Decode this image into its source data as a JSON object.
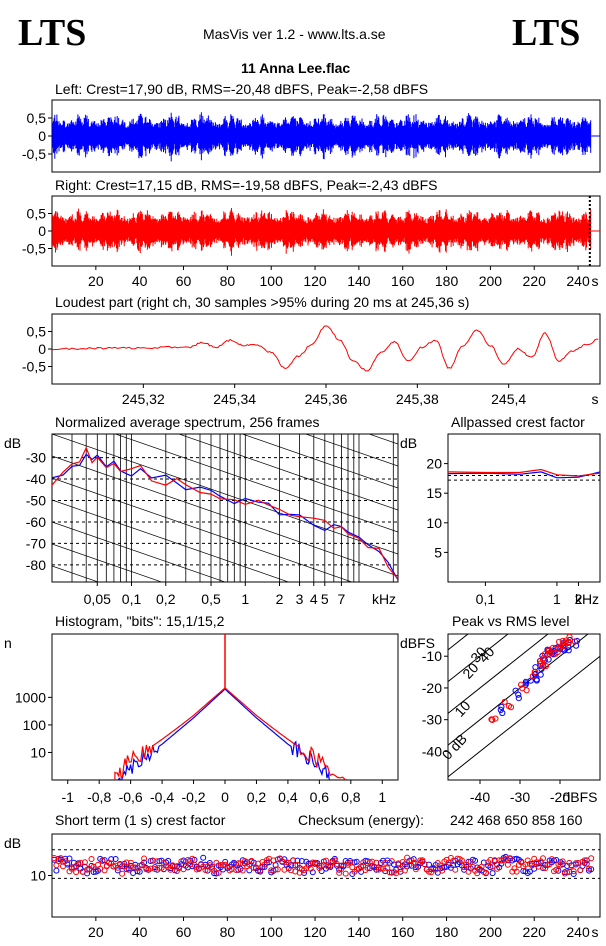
{
  "header": {
    "logo_left": "LTS",
    "logo_right": "LTS",
    "app_title": "MasVis ver 1.2 - www.lts.a.se",
    "file_name": "11 Anna Lee.flac"
  },
  "colors": {
    "left": "#0000ff",
    "right": "#ff0000",
    "frame": "#000000",
    "grid": "#000000"
  },
  "chart_data": [
    {
      "id": "left",
      "type": "line",
      "title": "Left: Crest=17,90 dB, RMS=-20,48 dBFS, Peak=-2,58 dBFS",
      "y_ticks": [
        "0,5",
        "0",
        "-0,5"
      ],
      "y_tick_values": [
        0.5,
        0,
        -0.5
      ],
      "ylim": [
        -1,
        1
      ],
      "xlim": [
        0,
        250
      ],
      "duration_s": 246,
      "envelope_peak": 0.75,
      "envelope_typical": 0.55
    },
    {
      "id": "right",
      "type": "line",
      "title": "Right: Crest=17,15 dB, RMS=-19,58 dBFS, Peak=-2,43 dBFS",
      "y_ticks": [
        "0,5",
        "0",
        "-0,5"
      ],
      "y_tick_values": [
        0.5,
        0,
        -0.5
      ],
      "ylim": [
        -1,
        1
      ],
      "xlim": [
        0,
        250
      ],
      "x_ticks": [
        "20",
        "40",
        "60",
        "80",
        "100",
        "120",
        "140",
        "160",
        "180",
        "200",
        "220",
        "240"
      ],
      "x_tick_values": [
        20,
        40,
        60,
        80,
        100,
        120,
        140,
        160,
        180,
        200,
        220,
        240
      ],
      "xunit": "s",
      "marker_x": 245.36
    },
    {
      "id": "loudest",
      "type": "line",
      "title": "Loudest part (right ch, 30 samples >95% during 20 ms at 245,36 s)",
      "y_ticks": [
        "0,5",
        "0",
        "-0,5"
      ],
      "y_tick_values": [
        0.5,
        0,
        -0.5
      ],
      "ylim": [
        -1,
        1
      ],
      "xlim": [
        245.3,
        245.42
      ],
      "x_ticks": [
        "245,32",
        "245,34",
        "245,36",
        "245,38",
        "245,4"
      ],
      "x_tick_values": [
        245.32,
        245.34,
        245.36,
        245.38,
        245.4
      ],
      "xunit": "s",
      "series": [
        {
          "x": [
            245.3,
            245.305,
            245.31,
            245.315,
            245.32,
            245.325,
            245.33,
            245.333,
            245.336,
            245.339,
            245.342,
            245.345,
            245.348,
            245.351,
            245.354,
            245.357,
            245.36,
            245.363,
            245.366,
            245.369,
            245.372,
            245.375,
            245.378,
            245.381,
            245.384,
            245.387,
            245.39,
            245.393,
            245.396,
            245.399,
            245.402,
            245.405,
            245.408,
            245.411,
            245.414,
            245.417,
            245.42
          ],
          "y": [
            0.0,
            0.0,
            0.02,
            0.03,
            0.02,
            0.05,
            0.05,
            0.18,
            0.05,
            0.25,
            0.1,
            0.12,
            -0.1,
            -0.55,
            -0.2,
            0.15,
            0.68,
            0.25,
            -0.35,
            -0.62,
            -0.1,
            0.2,
            -0.35,
            0.05,
            0.25,
            -0.55,
            0.1,
            0.55,
            0.1,
            -0.45,
            0.0,
            -0.25,
            0.45,
            -0.35,
            -0.05,
            0.12,
            0.3
          ]
        }
      ]
    },
    {
      "id": "spectrum",
      "type": "line",
      "title": "Normalized average spectrum, 256 frames",
      "ylabel": "dB",
      "y_ticks": [
        "-30",
        "-40",
        "-50",
        "-60",
        "-70",
        "-80"
      ],
      "y_tick_values": [
        -30,
        -40,
        -50,
        -60,
        -70,
        -80
      ],
      "ylim": [
        -88,
        -19
      ],
      "xlim": [
        0.02,
        22
      ],
      "xscale": "log",
      "x_ticks": [
        "0,05",
        "0,1",
        "0,2",
        "0,5",
        "1",
        "2",
        "3",
        "4",
        "5",
        "7",
        "kHz"
      ],
      "x_tick_values": [
        0.05,
        0.1,
        0.2,
        0.5,
        1,
        2,
        3,
        4,
        5,
        7
      ],
      "series": [
        {
          "name": "",
          "color": "#0000ff",
          "x": [
            0.02,
            0.025,
            0.03,
            0.035,
            0.04,
            0.045,
            0.05,
            0.06,
            0.07,
            0.08,
            0.1,
            0.12,
            0.15,
            0.2,
            0.25,
            0.3,
            0.4,
            0.5,
            0.6,
            0.8,
            1,
            1.3,
            1.6,
            2,
            2.5,
            3,
            4,
            5,
            6,
            7,
            8,
            10,
            12,
            15,
            18,
            22
          ],
          "y": [
            -40,
            -38,
            -35,
            -32,
            -29,
            -30,
            -29,
            -34,
            -33,
            -36,
            -37,
            -36,
            -40,
            -40,
            -41,
            -44,
            -45,
            -47,
            -47,
            -50,
            -50,
            -52,
            -53,
            -55,
            -56,
            -57,
            -60,
            -62,
            -63,
            -64,
            -65,
            -68,
            -70,
            -74,
            -79,
            -88
          ]
        },
        {
          "name": "",
          "color": "#ff0000",
          "x": [
            0.02,
            0.025,
            0.03,
            0.035,
            0.04,
            0.045,
            0.05,
            0.06,
            0.07,
            0.08,
            0.1,
            0.12,
            0.15,
            0.2,
            0.25,
            0.3,
            0.4,
            0.5,
            0.6,
            0.8,
            1,
            1.3,
            1.6,
            2,
            2.5,
            3,
            4,
            5,
            6,
            7,
            8,
            10,
            12,
            15,
            18,
            22
          ],
          "y": [
            -41,
            -38,
            -34,
            -31,
            -27,
            -31,
            -28,
            -33,
            -32,
            -35,
            -36,
            -35,
            -39,
            -41,
            -40,
            -43,
            -46,
            -46,
            -48,
            -49,
            -51,
            -51,
            -54,
            -54,
            -57,
            -56,
            -59,
            -61,
            -64,
            -63,
            -66,
            -67,
            -71,
            -73,
            -80,
            -86
          ]
        }
      ]
    },
    {
      "id": "allpassed",
      "type": "line",
      "title": "Allpassed crest factor",
      "ylabel": "dB",
      "y_ticks": [
        "20",
        "15",
        "10",
        "5"
      ],
      "y_tick_values": [
        20,
        15,
        10,
        5
      ],
      "ylim": [
        0,
        25
      ],
      "xlim": [
        0.03,
        4
      ],
      "xscale": "log",
      "x_ticks": [
        "0,1",
        "1",
        "2",
        "kHz"
      ],
      "x_tick_values": [
        0.1,
        1,
        2
      ],
      "ref_lines": [
        18,
        17.2
      ],
      "series": [
        {
          "name": "",
          "color": "#0000ff",
          "x": [
            0.03,
            0.1,
            0.3,
            0.6,
            1,
            2,
            4
          ],
          "y": [
            18.3,
            18.4,
            18.2,
            18.6,
            17.6,
            17.7,
            18.6
          ]
        },
        {
          "name": "",
          "color": "#ff0000",
          "x": [
            0.03,
            0.1,
            0.3,
            0.6,
            1,
            2,
            4
          ],
          "y": [
            18.6,
            18.5,
            18.5,
            19.0,
            18.1,
            17.9,
            18.4
          ]
        }
      ]
    },
    {
      "id": "histogram",
      "type": "line",
      "title": "Histogram, \"bits\": 15,1/15,2",
      "ylabel": "n",
      "yscale": "log",
      "y_ticks": [
        "1000",
        "100",
        "10"
      ],
      "y_tick_values": [
        1000,
        100,
        10
      ],
      "ylim": [
        1,
        200000
      ],
      "xlim": [
        -1.1,
        1.1
      ],
      "x_ticks": [
        "-1",
        "-0,8",
        "-0,6",
        "-0,4",
        "-0,2",
        "0",
        "0,2",
        "0,4",
        "0,6",
        "0,8",
        "1"
      ],
      "x_tick_values": [
        -1,
        -0.8,
        -0.6,
        -0.4,
        -0.2,
        0,
        0.2,
        0.4,
        0.6,
        0.8,
        1
      ],
      "series": [
        {
          "name": "",
          "color": "#0000ff",
          "x": [
            -0.68,
            -0.6,
            -0.5,
            -0.4,
            -0.3,
            -0.2,
            -0.1,
            0,
            0.1,
            0.2,
            0.3,
            0.4,
            0.5,
            0.6,
            0.68
          ],
          "y": [
            1,
            3,
            8,
            20,
            60,
            180,
            600,
            2000,
            600,
            180,
            60,
            20,
            8,
            3,
            1
          ]
        },
        {
          "name": "",
          "color": "#ff0000",
          "x": [
            -0.7,
            -0.62,
            -0.5,
            -0.4,
            -0.3,
            -0.2,
            -0.1,
            0,
            0.1,
            0.2,
            0.3,
            0.4,
            0.5,
            0.62,
            0.78
          ],
          "y": [
            1,
            4,
            12,
            30,
            80,
            220,
            700,
            2200,
            700,
            220,
            80,
            30,
            12,
            4,
            1
          ]
        }
      ]
    },
    {
      "id": "peak_vs_rms",
      "type": "scatter",
      "title": "Peak vs RMS level",
      "ylabel": "dBFS",
      "xlabel": "dBFS",
      "y_ticks": [
        "-10",
        "-20",
        "-30",
        "-40"
      ],
      "y_tick_values": [
        -10,
        -20,
        -30,
        -40
      ],
      "ylim": [
        -49,
        -3
      ],
      "x_ticks": [
        "-40",
        "-30",
        "-20"
      ],
      "x_tick_values": [
        -40,
        -30,
        -20
      ],
      "xlim": [
        -48,
        -10
      ],
      "diagonal_labels": [
        "40",
        "30",
        "20",
        "10",
        "0 dB"
      ],
      "diagonal_offsets": [
        40,
        30,
        20,
        10,
        0
      ],
      "series": [
        {
          "name": "",
          "color": "#0000ff",
          "x": [
            -34,
            -30,
            -28,
            -27,
            -26,
            -25,
            -24,
            -23,
            -22,
            -21,
            -20,
            -19,
            -18,
            -17
          ],
          "y": [
            -27,
            -22,
            -19,
            -17,
            -15,
            -13,
            -11,
            -10,
            -9,
            -8,
            -7,
            -7,
            -6,
            -6
          ]
        },
        {
          "name": "",
          "color": "#ff0000",
          "x": [
            -37,
            -33,
            -29,
            -27,
            -25,
            -24,
            -23,
            -22,
            -21,
            -20,
            -19,
            -18,
            -17
          ],
          "y": [
            -30,
            -25,
            -20,
            -16,
            -13,
            -12,
            -10,
            -9,
            -8,
            -7,
            -6,
            -5,
            -5
          ]
        }
      ]
    },
    {
      "id": "short_term_crest",
      "type": "scatter",
      "title": "Short term (1 s) crest factor",
      "checksum_label": "Checksum (energy):",
      "checksum_value": "242 468 650 858 160",
      "ylabel": "dB",
      "y_ticks": [
        "10"
      ],
      "y_tick_values": [
        10
      ],
      "ylim": [
        0,
        20
      ],
      "ref_lines": [
        16.2,
        9.3
      ],
      "xlim": [
        0,
        250
      ],
      "x_ticks": [
        "20",
        "40",
        "60",
        "80",
        "100",
        "120",
        "140",
        "160",
        "180",
        "200",
        "220",
        "240"
      ],
      "x_tick_values": [
        20,
        40,
        60,
        80,
        100,
        120,
        140,
        160,
        180,
        200,
        220,
        240
      ],
      "xunit": "s",
      "y_center": 12.4,
      "y_spread": 1.6
    }
  ]
}
